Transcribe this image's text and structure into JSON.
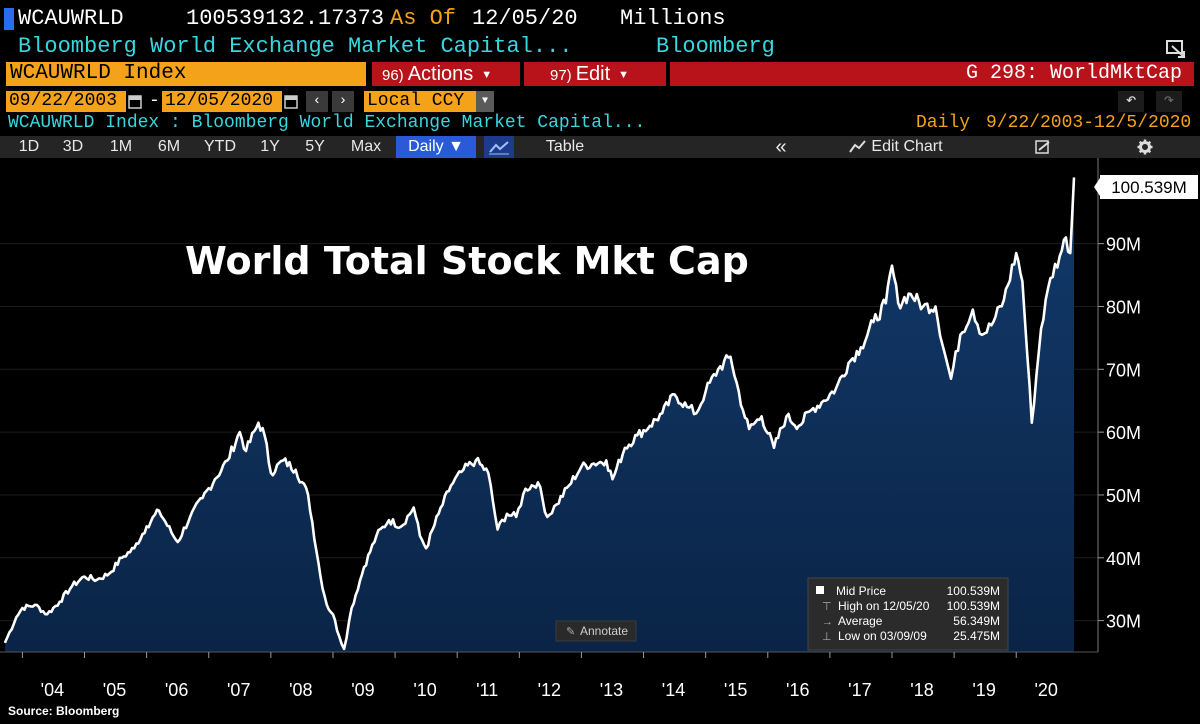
{
  "header": {
    "ticker": "WCAUWRLD",
    "value": "100539132.17373",
    "as_of_label": "As Of",
    "as_of_date": "12/05/20",
    "units": "Millions",
    "description": "Bloomberg World Exchange Market Capital...",
    "source_label": "Bloomberg"
  },
  "commandbar": {
    "security": "WCAUWRLD Index",
    "actions_num": "96)",
    "actions_label": "Actions",
    "edit_num": "97)",
    "edit_label": "Edit",
    "chart_id": "G 298: WorldMktCap"
  },
  "daterange": {
    "start": "09/22/2003",
    "separator": "-",
    "end": "12/05/2020",
    "currency": "Local CCY"
  },
  "subtitle": {
    "security_desc": "WCAUWRLD Index : Bloomberg World Exchange Market Capital...",
    "frequency": "Daily",
    "range": "9/22/2003-12/5/2020"
  },
  "toolbar": {
    "periods": [
      "1D",
      "3D",
      "1M",
      "6M",
      "YTD",
      "1Y",
      "5Y",
      "Max"
    ],
    "frequency": "Daily ▼",
    "table": "Table",
    "collapse": "«",
    "edit_chart": "Edit Chart"
  },
  "legend": {
    "mid_price_label": "Mid Price",
    "mid_price_value": "100.539M",
    "high_label": "High on 12/05/20",
    "high_value": "100.539M",
    "average_label": "Average",
    "average_value": "56.349M",
    "low_label": "Low on 03/09/09",
    "low_value": "25.475M"
  },
  "annotate_label": "Annotate",
  "source_text": "Source: Bloomberg",
  "colors": {
    "orange": "#f5a21b",
    "red": "#b8121a",
    "cyan": "#39d6e0",
    "blue": "#2a5ad8",
    "area_fill": "#0e2d57"
  },
  "chart_data": {
    "type": "area",
    "title": "World Total Stock Mkt Cap",
    "last_value_label": "100.539M",
    "ylim": [
      25,
      103
    ],
    "yticks": [
      30,
      40,
      50,
      60,
      70,
      80,
      90
    ],
    "ytick_labels": [
      "30M",
      "40M",
      "50M",
      "60M",
      "70M",
      "80M",
      "90M"
    ],
    "xlim": [
      2003.72,
      2020.93
    ],
    "xticks": [
      2004,
      2005,
      2006,
      2007,
      2008,
      2009,
      2010,
      2011,
      2012,
      2013,
      2014,
      2015,
      2016,
      2017,
      2018,
      2019,
      2020
    ],
    "xtick_labels": [
      "'04",
      "'05",
      "'06",
      "'07",
      "'08",
      "'09",
      "'10",
      "'11",
      "'12",
      "'13",
      "'14",
      "'15",
      "'16",
      "'17",
      "'18",
      "'19",
      "'20"
    ],
    "series": [
      {
        "name": "WCAUWRLD Index",
        "x": [
          2003.72,
          2003.9,
          2004.0,
          2004.2,
          2004.4,
          2004.6,
          2004.8,
          2005.0,
          2005.2,
          2005.4,
          2005.6,
          2005.8,
          2006.0,
          2006.2,
          2006.4,
          2006.5,
          2006.7,
          2006.9,
          2007.1,
          2007.3,
          2007.5,
          2007.6,
          2007.8,
          2007.9,
          2008.0,
          2008.2,
          2008.4,
          2008.6,
          2008.8,
          2008.9,
          2009.0,
          2009.1,
          2009.18,
          2009.3,
          2009.5,
          2009.7,
          2009.9,
          2010.1,
          2010.3,
          2010.4,
          2010.5,
          2010.7,
          2010.9,
          2011.1,
          2011.3,
          2011.5,
          2011.65,
          2011.8,
          2011.95,
          2012.1,
          2012.3,
          2012.45,
          2012.6,
          2012.8,
          2013.0,
          2013.2,
          2013.4,
          2013.5,
          2013.7,
          2013.9,
          2014.1,
          2014.3,
          2014.5,
          2014.7,
          2014.85,
          2015.0,
          2015.2,
          2015.4,
          2015.6,
          2015.7,
          2015.9,
          2016.1,
          2016.3,
          2016.5,
          2016.7,
          2016.9,
          2017.1,
          2017.3,
          2017.5,
          2017.7,
          2017.9,
          2018.0,
          2018.1,
          2018.3,
          2018.5,
          2018.7,
          2018.85,
          2018.95,
          2019.1,
          2019.3,
          2019.45,
          2019.6,
          2019.8,
          2020.0,
          2020.1,
          2020.18,
          2020.25,
          2020.4,
          2020.55,
          2020.7,
          2020.8,
          2020.87,
          2020.93
        ],
        "values": [
          26.5,
          30.5,
          32.0,
          32.5,
          31.0,
          33.0,
          35.5,
          37.0,
          36.5,
          37.5,
          40.0,
          41.5,
          45.0,
          47.5,
          44.0,
          42.5,
          46.5,
          49.5,
          52.5,
          55.5,
          60.0,
          57.0,
          61.5,
          59.5,
          53.5,
          55.5,
          54.0,
          50.0,
          37.0,
          32.5,
          31.0,
          27.5,
          25.5,
          32.0,
          38.5,
          43.5,
          46.0,
          45.0,
          48.0,
          43.5,
          41.5,
          47.0,
          51.5,
          54.0,
          55.5,
          53.5,
          44.5,
          47.0,
          46.5,
          51.0,
          52.0,
          46.5,
          48.5,
          51.5,
          54.5,
          55.0,
          55.5,
          52.5,
          57.5,
          59.5,
          61.0,
          63.0,
          66.0,
          64.0,
          63.0,
          66.5,
          70.0,
          72.0,
          63.5,
          60.5,
          62.5,
          57.5,
          62.5,
          61.0,
          63.5,
          65.0,
          67.0,
          71.0,
          73.5,
          77.5,
          80.5,
          86.5,
          80.5,
          82.0,
          80.0,
          80.0,
          72.5,
          68.5,
          75.5,
          79.5,
          75.5,
          77.0,
          81.0,
          88.5,
          84.0,
          72.0,
          61.5,
          76.5,
          84.5,
          88.0,
          91.0,
          88.5,
          100.5
        ]
      }
    ]
  }
}
